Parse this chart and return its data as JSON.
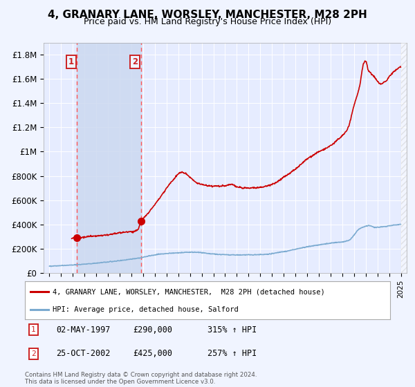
{
  "title": "4, GRANARY LANE, WORSLEY, MANCHESTER, M28 2PH",
  "subtitle": "Price paid vs. HM Land Registry's House Price Index (HPI)",
  "ylabel_ticks": [
    "£0",
    "£200K",
    "£400K",
    "£600K",
    "£800K",
    "£1M",
    "£1.2M",
    "£1.4M",
    "£1.6M",
    "£1.8M"
  ],
  "ytick_values": [
    0,
    200000,
    400000,
    600000,
    800000,
    1000000,
    1200000,
    1400000,
    1600000,
    1800000
  ],
  "ylim": [
    0,
    1900000
  ],
  "xlim_left": 1994.5,
  "xlim_right": 2025.5,
  "sale1_date": 1997.35,
  "sale1_price": 290000,
  "sale2_date": 2002.82,
  "sale2_price": 425000,
  "legend_line1": "4, GRANARY LANE, WORSLEY, MANCHESTER,  M28 2PH (detached house)",
  "legend_line2": "HPI: Average price, detached house, Salford",
  "footer": "Contains HM Land Registry data © Crown copyright and database right 2024.\nThis data is licensed under the Open Government Licence v3.0.",
  "background_color": "#f0f4ff",
  "plot_bg_color": "#e6ecff",
  "line_color_red": "#cc0000",
  "line_color_blue": "#7aaad0",
  "vline_color": "#ff5555",
  "box_color": "#cc2222",
  "span_color": "#ccd9f0",
  "grid_color": "#ffffff"
}
